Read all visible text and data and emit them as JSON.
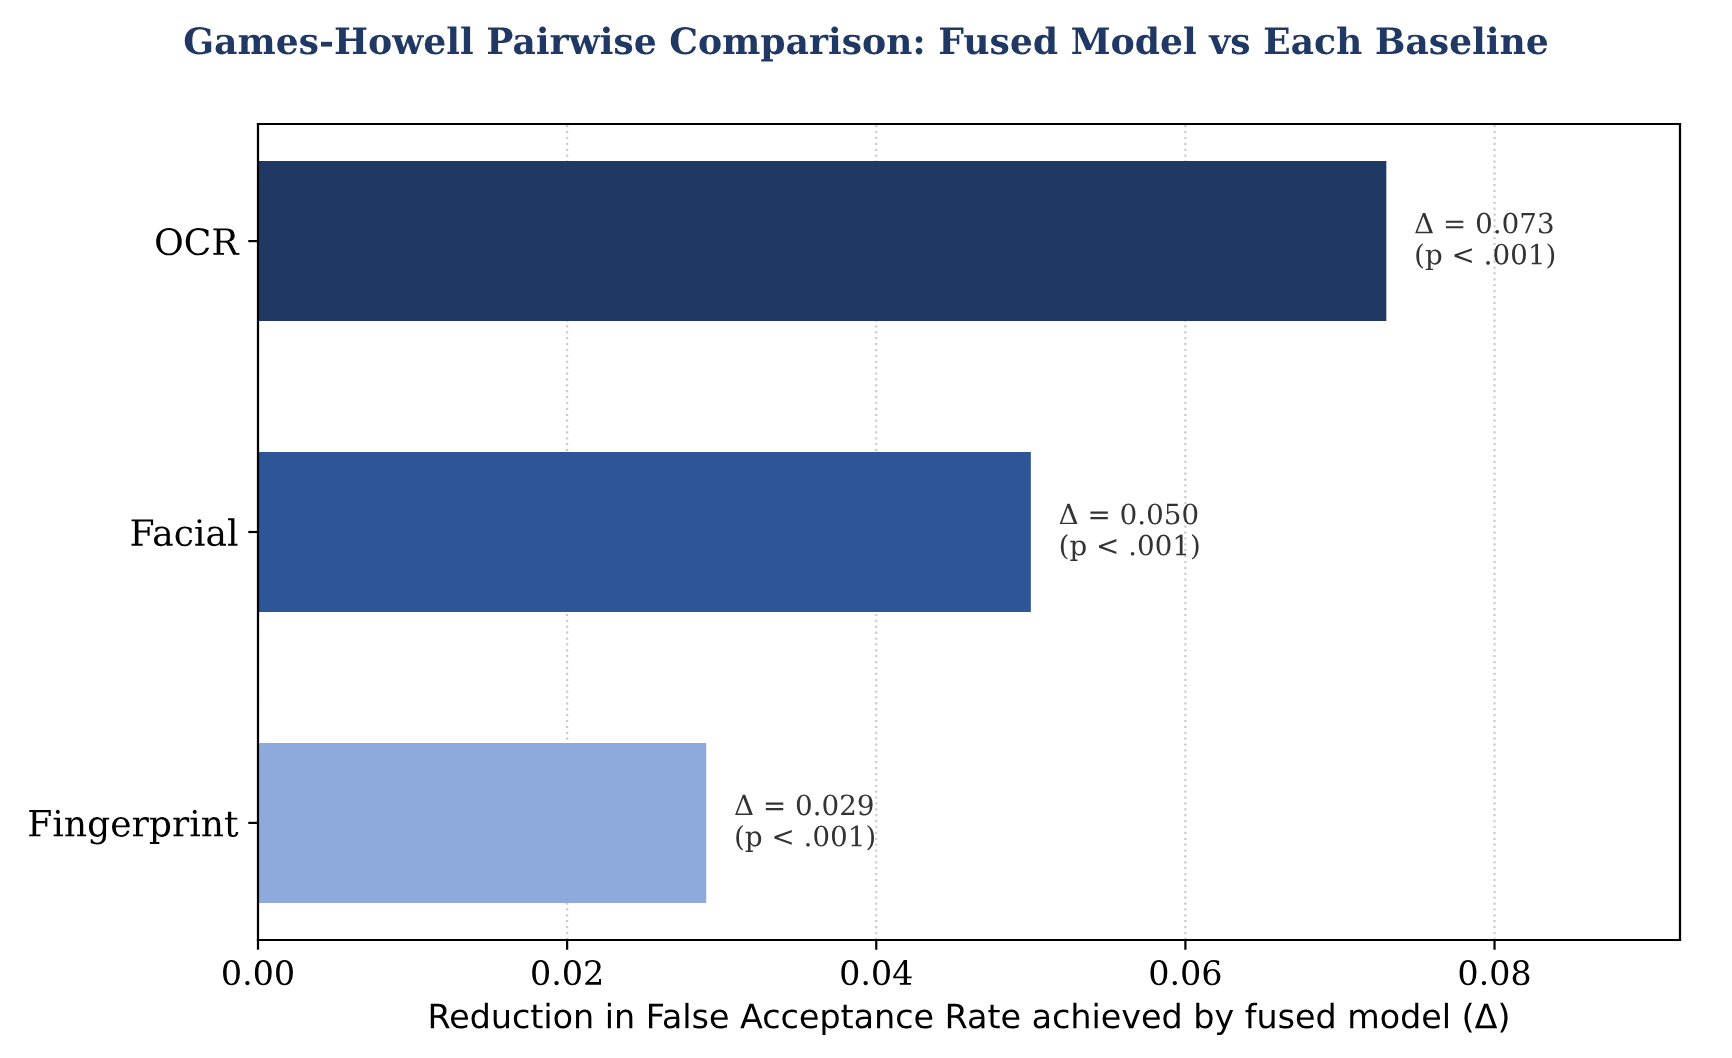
{
  "chart_data": {
    "type": "bar",
    "orientation": "horizontal",
    "title": "Games-Howell Pairwise Comparison: Fused Model vs Each Baseline",
    "xlabel": "Reduction in False Acceptance Rate achieved by fused model (Δ)",
    "categories": [
      "OCR",
      "Facial",
      "Fingerprint"
    ],
    "values": [
      0.073,
      0.05,
      0.029
    ],
    "colors": [
      "#1f3864",
      "#2e5597",
      "#8eaadc"
    ],
    "value_labels": [
      "Δ = 0.073\n(p < .001)",
      "Δ = 0.050\n(p < .001)",
      "Δ = 0.029\n(p < .001)"
    ],
    "xlim": [
      0,
      0.092
    ],
    "xticks": [
      {
        "value": 0,
        "label": "0.00"
      },
      {
        "value": 0.02,
        "label": "0.02"
      },
      {
        "value": 0.04,
        "label": "0.04"
      },
      {
        "value": 0.06,
        "label": "0.06"
      },
      {
        "value": 0.08,
        "label": "0.08"
      }
    ],
    "grid": "x"
  }
}
